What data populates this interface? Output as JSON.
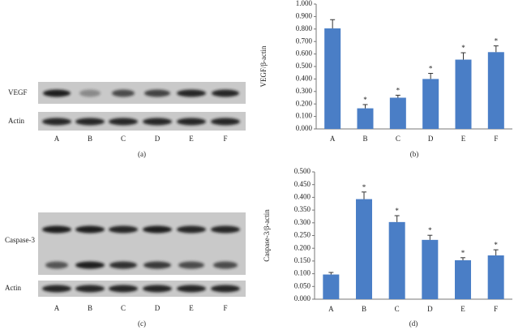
{
  "blots": [
    {
      "rows": [
        "VEGF",
        "Actin"
      ],
      "lanes": [
        "A",
        "B",
        "C",
        "D",
        "E",
        "F"
      ],
      "label": "(a)"
    },
    {
      "rows": [
        "Caspase-3",
        "Actin"
      ],
      "lanes": [
        "A",
        "B",
        "C",
        "D",
        "E",
        "F"
      ],
      "label": "(c)"
    }
  ],
  "chart_data": [
    {
      "type": "bar",
      "ylabel": "VEGF/β-actin",
      "label": "(b)",
      "color": "#4a7ec6",
      "categories": [
        "A",
        "B",
        "C",
        "D",
        "E",
        "F"
      ],
      "values": [
        0.805,
        0.165,
        0.25,
        0.4,
        0.555,
        0.615
      ],
      "errors": [
        0.07,
        0.03,
        0.02,
        0.045,
        0.055,
        0.05
      ],
      "annotations": [
        null,
        "*",
        "*",
        "*",
        "*",
        "*"
      ],
      "ylim": [
        0,
        1
      ],
      "yticks": [
        {
          "value": 0,
          "label": "0.000"
        },
        {
          "value": 0.1,
          "label": "0.100"
        },
        {
          "value": 0.2,
          "label": "0.200"
        },
        {
          "value": 0.3,
          "label": "0.300"
        },
        {
          "value": 0.4,
          "label": "0.400"
        },
        {
          "value": 0.5,
          "label": "0.500"
        },
        {
          "value": 0.6,
          "label": "0.600"
        },
        {
          "value": 0.7,
          "label": "0.700"
        },
        {
          "value": 0.8,
          "label": "0.800"
        },
        {
          "value": 0.9,
          "label": "0.900"
        },
        {
          "value": 1,
          "label": "1.000"
        }
      ]
    },
    {
      "type": "bar",
      "ylabel": "Caspase-3/β-actin",
      "label": "(d)",
      "color": "#4a7ec6",
      "categories": [
        "A",
        "B",
        "C",
        "D",
        "E",
        "F"
      ],
      "values": [
        0.097,
        0.393,
        0.303,
        0.233,
        0.153,
        0.172
      ],
      "errors": [
        0.008,
        0.028,
        0.025,
        0.018,
        0.01,
        0.022
      ],
      "annotations": [
        null,
        "*",
        "*",
        "*",
        "*",
        "*"
      ],
      "ylim": [
        0,
        0.5
      ],
      "yticks": [
        {
          "value": 0,
          "label": "0.000"
        },
        {
          "value": 0.05,
          "label": "0.050"
        },
        {
          "value": 0.1,
          "label": "0.100"
        },
        {
          "value": 0.15,
          "label": "0.150"
        },
        {
          "value": 0.2,
          "label": "0.200"
        },
        {
          "value": 0.25,
          "label": "0.250"
        },
        {
          "value": 0.3,
          "label": "0.300"
        },
        {
          "value": 0.35,
          "label": "0.350"
        },
        {
          "value": 0.4,
          "label": "0.400"
        },
        {
          "value": 0.45,
          "label": "0.450"
        },
        {
          "value": 0.5,
          "label": "0.500"
        }
      ]
    }
  ]
}
